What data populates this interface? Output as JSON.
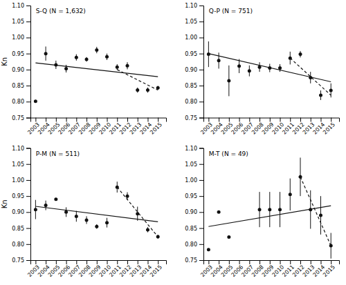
{
  "chart_data": [
    {
      "type": "scatter",
      "title": "S-Q (N = 1,632)",
      "ylabel": "Kn",
      "x": [
        2003,
        2004,
        2005,
        2006,
        2007,
        2008,
        2009,
        2010,
        2011,
        2012,
        2013,
        2014,
        2015
      ],
      "series": [
        {
          "type": "scatter",
          "marker": "circle",
          "color": "#111111",
          "values": [
            0.801,
            0.95,
            0.915,
            0.903,
            0.938,
            0.932,
            0.961,
            0.94,
            0.908,
            0.912,
            0.836,
            0.836,
            0.843
          ],
          "error": [
            0.0,
            0.022,
            0.013,
            0.012,
            0.01,
            0.007,
            0.01,
            0.01,
            0.009,
            0.011,
            0.008,
            0.008,
            0.006
          ]
        },
        {
          "type": "line",
          "line_style": "solid",
          "color": "#111111",
          "x": [
            2003,
            2015
          ],
          "values": [
            0.921,
            0.878
          ]
        },
        {
          "type": "line",
          "line_style": "dashed",
          "color": "#111111",
          "x": [
            2011,
            2015
          ],
          "values": [
            0.9,
            0.836
          ]
        }
      ],
      "xlim": [
        2002.5,
        2015.8
      ],
      "xticks": [
        2003,
        2004,
        2005,
        2006,
        2007,
        2008,
        2009,
        2010,
        2011,
        2012,
        2013,
        2014,
        2015
      ],
      "ylim": [
        0.75,
        1.1
      ],
      "yticks": [
        0.75,
        {
          "value": 0.8,
          "label": "0.80"
        },
        0.85,
        {
          "value": 0.9,
          "label": "0.90"
        },
        0.95,
        {
          "value": 1.0,
          "label": "1.00"
        },
        1.05,
        {
          "value": 1.1,
          "label": "1.10"
        }
      ]
    },
    {
      "type": "scatter",
      "title": "Q-P (N = 751)",
      "x": [
        2003,
        2004,
        2005,
        2006,
        2007,
        2008,
        2009,
        2010,
        2011,
        2012,
        2013,
        2014,
        2015
      ],
      "series": [
        {
          "type": "scatter",
          "marker": "circle",
          "color": "#111111",
          "values": [
            0.948,
            0.928,
            0.865,
            0.911,
            0.896,
            0.908,
            0.905,
            0.905,
            0.936,
            0.948,
            0.875,
            0.82,
            0.835
          ],
          "error": [
            0.04,
            0.025,
            0.048,
            0.022,
            0.017,
            0.015,
            0.013,
            0.012,
            0.02,
            0.01,
            0.018,
            0.015,
            0.022
          ]
        },
        {
          "type": "line",
          "line_style": "solid",
          "color": "#111111",
          "x": [
            2003,
            2015
          ],
          "values": [
            0.95,
            0.862
          ]
        },
        {
          "type": "line",
          "line_style": "dashed",
          "color": "#111111",
          "x": [
            2011,
            2015
          ],
          "values": [
            0.936,
            0.82
          ]
        }
      ],
      "xlim": [
        2002.5,
        2015.8
      ],
      "xticks": [
        2003,
        2004,
        2005,
        2006,
        2007,
        2008,
        2009,
        2010,
        2011,
        2012,
        2013,
        2014,
        2015
      ],
      "ylim": [
        0.75,
        1.1
      ],
      "yticks": [
        0.75,
        {
          "value": 0.8,
          "label": "0.80"
        },
        0.85,
        {
          "value": 0.9,
          "label": "0.90"
        },
        0.95,
        {
          "value": 1.0,
          "label": "1.00"
        },
        1.05,
        {
          "value": 1.1,
          "label": "1.10"
        }
      ]
    },
    {
      "type": "scatter",
      "title": "P-M (N = 511)",
      "ylabel": "Kn",
      "x": [
        2003,
        2004,
        2005,
        2006,
        2007,
        2008,
        2009,
        2010,
        2011,
        2012,
        2013,
        2014,
        2015
      ],
      "series": [
        {
          "type": "scatter",
          "marker": "circle",
          "color": "#111111",
          "values": [
            0.908,
            0.921,
            0.94,
            0.9,
            0.887,
            0.875,
            0.855,
            0.867,
            0.978,
            0.95,
            0.895,
            0.845,
            0.823
          ],
          "error": [
            0.03,
            0.015,
            0.0,
            0.015,
            0.017,
            0.012,
            0.007,
            0.015,
            0.017,
            0.012,
            0.022,
            0.008,
            0.006
          ]
        },
        {
          "type": "line",
          "line_style": "solid",
          "color": "#111111",
          "x": [
            2003,
            2015
          ],
          "values": [
            0.918,
            0.87
          ]
        },
        {
          "type": "line",
          "line_style": "dashed",
          "color": "#111111",
          "x": [
            2011,
            2015
          ],
          "values": [
            0.978,
            0.823
          ]
        }
      ],
      "xlim": [
        2002.5,
        2015.8
      ],
      "xticks": [
        2003,
        2004,
        2005,
        2006,
        2007,
        2008,
        2009,
        2010,
        2011,
        2012,
        2013,
        2014,
        2015
      ],
      "ylim": [
        0.75,
        1.1
      ],
      "yticks": [
        0.75,
        {
          "value": 0.8,
          "label": "0.80"
        },
        0.85,
        {
          "value": 0.9,
          "label": "0.90"
        },
        0.95,
        {
          "value": 1.0,
          "label": "1.00"
        },
        1.05,
        {
          "value": 1.1,
          "label": "1.10"
        }
      ]
    },
    {
      "type": "scatter",
      "title": "M-T (N = 49)",
      "x": [
        2003,
        2004,
        2005,
        2008,
        2009,
        2010,
        2011,
        2012,
        2013,
        2014,
        2015
      ],
      "series": [
        {
          "type": "scatter",
          "marker": "circle",
          "color": "#111111",
          "values": [
            0.783,
            0.9,
            0.822,
            0.908,
            0.908,
            0.908,
            0.955,
            1.01,
            0.908,
            0.89,
            0.795
          ],
          "error": [
            0.0,
            0.0,
            0.0,
            0.055,
            0.055,
            0.055,
            0.05,
            0.06,
            0.06,
            0.06,
            0.04
          ]
        },
        {
          "type": "line",
          "line_style": "solid",
          "color": "#111111",
          "x": [
            2003,
            2015
          ],
          "values": [
            0.855,
            0.92
          ]
        },
        {
          "type": "line",
          "line_style": "dashed",
          "color": "#111111",
          "x": [
            2012,
            2015
          ],
          "values": [
            1.01,
            0.795
          ]
        }
      ],
      "xlim": [
        2002.5,
        2015.8
      ],
      "xticks": [
        2003,
        2004,
        2005,
        2006,
        2007,
        2008,
        2009,
        2010,
        2011,
        2012,
        2013,
        2014,
        2015
      ],
      "ylim": [
        0.75,
        1.1
      ],
      "yticks": [
        0.75,
        {
          "value": 0.8,
          "label": "0.80"
        },
        0.85,
        {
          "value": 0.9,
          "label": "0.90"
        },
        0.95,
        {
          "value": 1.0,
          "label": "1.00"
        },
        1.05,
        {
          "value": 1.1,
          "label": "1.10"
        }
      ]
    }
  ]
}
